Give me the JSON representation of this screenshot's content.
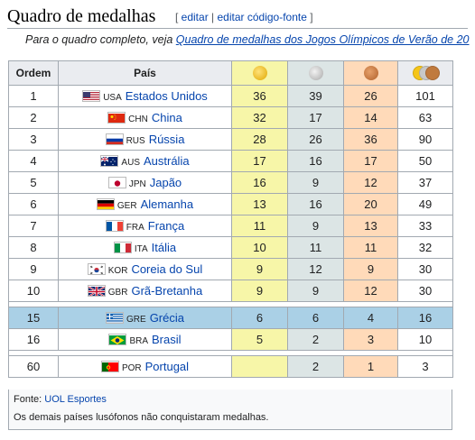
{
  "heading": {
    "title": "Quadro de medalhas",
    "edit_open": "[ ",
    "edit_label": "editar",
    "edit_sep": " | ",
    "edit_source_label": "editar código-fonte",
    "edit_close": " ]"
  },
  "hatnote": {
    "prefix": "Para o quadro completo, veja ",
    "link": "Quadro de medalhas dos Jogos Olímpicos de Verão de 20"
  },
  "table": {
    "headers": {
      "rank": "Ordem",
      "country": "País"
    },
    "medal_colors": {
      "gold": "#f7f6a8",
      "silver": "#dce5e5",
      "bronze": "#ffdab9",
      "highlight": "#aad0e6"
    },
    "rows": [
      {
        "rank": "1",
        "code": "USA",
        "name": "Estados Unidos",
        "gold": "36",
        "silver": "39",
        "bronze": "26",
        "total": "101"
      },
      {
        "rank": "2",
        "code": "CHN",
        "name": "China",
        "gold": "32",
        "silver": "17",
        "bronze": "14",
        "total": "63"
      },
      {
        "rank": "3",
        "code": "RUS",
        "name": "Rússia",
        "gold": "28",
        "silver": "26",
        "bronze": "36",
        "total": "90"
      },
      {
        "rank": "4",
        "code": "AUS",
        "name": "Austrália",
        "gold": "17",
        "silver": "16",
        "bronze": "17",
        "total": "50"
      },
      {
        "rank": "5",
        "code": "JPN",
        "name": "Japão",
        "gold": "16",
        "silver": "9",
        "bronze": "12",
        "total": "37"
      },
      {
        "rank": "6",
        "code": "GER",
        "name": "Alemanha",
        "gold": "13",
        "silver": "16",
        "bronze": "20",
        "total": "49"
      },
      {
        "rank": "7",
        "code": "FRA",
        "name": "França",
        "gold": "11",
        "silver": "9",
        "bronze": "13",
        "total": "33"
      },
      {
        "rank": "8",
        "code": "ITA",
        "name": "Itália",
        "gold": "10",
        "silver": "11",
        "bronze": "11",
        "total": "32"
      },
      {
        "rank": "9",
        "code": "KOR",
        "name": "Coreia do Sul",
        "gold": "9",
        "silver": "12",
        "bronze": "9",
        "total": "30"
      },
      {
        "rank": "10",
        "code": "GBR",
        "name": "Grã-Bretanha",
        "gold": "9",
        "silver": "9",
        "bronze": "12",
        "total": "30"
      }
    ],
    "rows2": [
      {
        "rank": "15",
        "code": "GRE",
        "name": "Grécia",
        "gold": "6",
        "silver": "6",
        "bronze": "4",
        "total": "16",
        "highlight": true
      },
      {
        "rank": "16",
        "code": "BRA",
        "name": "Brasil",
        "gold": "5",
        "silver": "2",
        "bronze": "3",
        "total": "10"
      }
    ],
    "rows3": [
      {
        "rank": "60",
        "code": "POR",
        "name": "Portugal",
        "gold": "",
        "silver": "2",
        "bronze": "1",
        "total": "3"
      }
    ]
  },
  "footer": {
    "source_prefix": "Fonte: ",
    "source_link": "UOL Esportes",
    "note": "Os demais países lusófonos não conquistaram medalhas."
  }
}
